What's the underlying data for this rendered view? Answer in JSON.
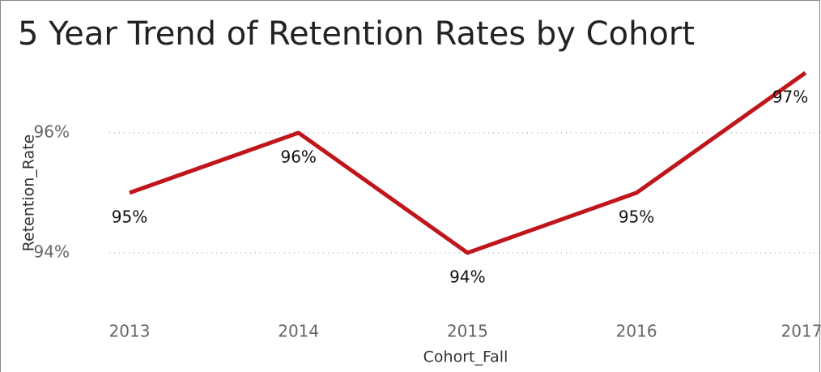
{
  "chart_data": {
    "type": "line",
    "title": "5 Year Trend of Retention Rates by Cohort",
    "x_label": "Cohort_Fall",
    "y_label": "Retention_Rate",
    "categories": [
      "2013",
      "2014",
      "2015",
      "2016",
      "2017"
    ],
    "series": [
      {
        "name": "Retention_Rate",
        "color": "#c0161b",
        "values": [
          95,
          96,
          94,
          95,
          97
        ],
        "value_labels": [
          "95%",
          "96%",
          "94%",
          "95%",
          "97%"
        ]
      }
    ],
    "ylim": [
      93,
      97.2
    ],
    "yticks": [
      {
        "value": 94,
        "label": "94%"
      },
      {
        "value": 96,
        "label": "96%"
      }
    ],
    "grid": true
  }
}
